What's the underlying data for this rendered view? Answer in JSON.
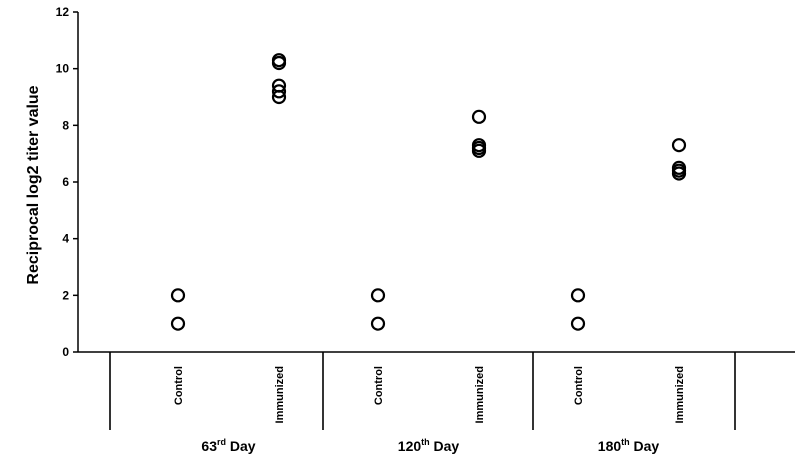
{
  "chart_data": {
    "type": "scatter",
    "title": "",
    "xlabel": "",
    "ylabel": "Reciprocal log2 titer value",
    "ylim": [
      0,
      12
    ],
    "yticks": [
      0,
      2,
      4,
      6,
      8,
      10,
      12
    ],
    "grid": false,
    "legend": "none",
    "categories": [
      "Control",
      "Immunized",
      "Control",
      "Immunized",
      "Control",
      "Immunized"
    ],
    "groups": [
      {
        "label": "63",
        "suffix": "rd",
        "tail": " Day",
        "categories": [
          0,
          1
        ]
      },
      {
        "label": "120",
        "suffix": "th",
        "tail": " Day",
        "categories": [
          2,
          3
        ]
      },
      {
        "label": "180",
        "suffix": "th",
        "tail": " Day",
        "categories": [
          4,
          5
        ]
      }
    ],
    "points": [
      {
        "category": 0,
        "y": 2.0
      },
      {
        "category": 0,
        "y": 1.0
      },
      {
        "category": 1,
        "y": 10.3
      },
      {
        "category": 1,
        "y": 10.2
      },
      {
        "category": 1,
        "y": 9.4
      },
      {
        "category": 1,
        "y": 9.2
      },
      {
        "category": 1,
        "y": 9.0
      },
      {
        "category": 2,
        "y": 2.0
      },
      {
        "category": 2,
        "y": 1.0
      },
      {
        "category": 3,
        "y": 8.3
      },
      {
        "category": 3,
        "y": 7.3
      },
      {
        "category": 3,
        "y": 7.2
      },
      {
        "category": 3,
        "y": 7.1
      },
      {
        "category": 4,
        "y": 2.0
      },
      {
        "category": 4,
        "y": 1.0
      },
      {
        "category": 5,
        "y": 7.3
      },
      {
        "category": 5,
        "y": 6.5
      },
      {
        "category": 5,
        "y": 6.4
      },
      {
        "category": 5,
        "y": 6.3
      }
    ],
    "marker": "open-circle",
    "marker_color": "#000000"
  }
}
